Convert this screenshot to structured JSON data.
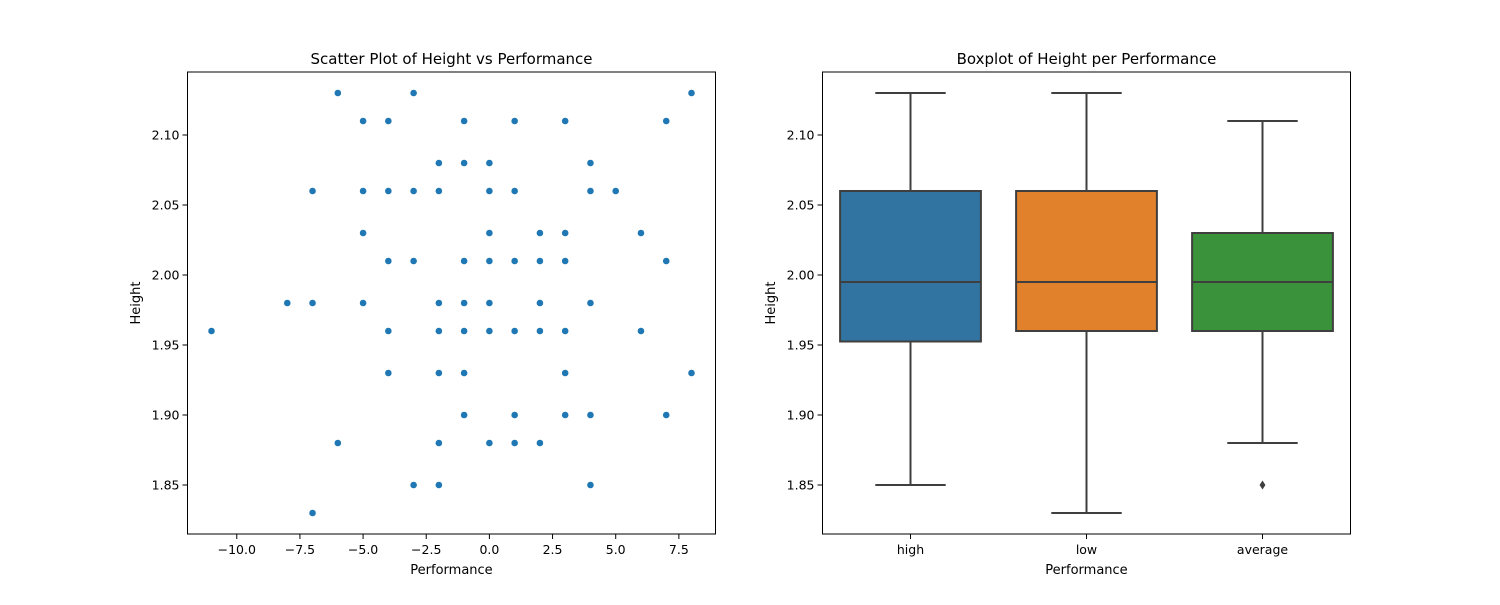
{
  "chart_data": [
    {
      "type": "scatter",
      "title": "Scatter Plot of Height vs Performance",
      "xlabel": "Performance",
      "ylabel": "Height",
      "xlim": [
        -11.95,
        8.95
      ],
      "ylim": [
        1.815,
        2.145
      ],
      "xticks": [
        -10.0,
        -7.5,
        -5.0,
        -2.5,
        0.0,
        2.5,
        5.0,
        7.5
      ],
      "xtick_labels": [
        "−10.0",
        "−7.5",
        "−5.0",
        "−2.5",
        "0.0",
        "2.5",
        "5.0",
        "7.5"
      ],
      "yticks": [
        1.85,
        1.9,
        1.95,
        2.0,
        2.05,
        2.1
      ],
      "ytick_labels": [
        "1.85",
        "1.90",
        "1.95",
        "2.00",
        "2.05",
        "2.10"
      ],
      "grid": false,
      "color": "#1f77b4",
      "points": [
        [
          -6,
          2.13
        ],
        [
          -3,
          2.13
        ],
        [
          8,
          2.13
        ],
        [
          -5,
          2.11
        ],
        [
          -4,
          2.11
        ],
        [
          -1,
          2.11
        ],
        [
          1,
          2.11
        ],
        [
          3,
          2.11
        ],
        [
          7,
          2.11
        ],
        [
          -2,
          2.08
        ],
        [
          -1,
          2.08
        ],
        [
          0,
          2.08
        ],
        [
          4,
          2.08
        ],
        [
          -7,
          2.06
        ],
        [
          -5,
          2.06
        ],
        [
          -4,
          2.06
        ],
        [
          -3,
          2.06
        ],
        [
          -2,
          2.06
        ],
        [
          0,
          2.06
        ],
        [
          1,
          2.06
        ],
        [
          4,
          2.06
        ],
        [
          5,
          2.06
        ],
        [
          -5,
          2.03
        ],
        [
          0,
          2.03
        ],
        [
          2,
          2.03
        ],
        [
          3,
          2.03
        ],
        [
          6,
          2.03
        ],
        [
          -4,
          2.01
        ],
        [
          -3,
          2.01
        ],
        [
          -1,
          2.01
        ],
        [
          0,
          2.01
        ],
        [
          1,
          2.01
        ],
        [
          2,
          2.01
        ],
        [
          3,
          2.01
        ],
        [
          7,
          2.01
        ],
        [
          -8,
          1.98
        ],
        [
          -7,
          1.98
        ],
        [
          -5,
          1.98
        ],
        [
          -2,
          1.98
        ],
        [
          -1,
          1.98
        ],
        [
          0,
          1.98
        ],
        [
          2,
          1.98
        ],
        [
          4,
          1.98
        ],
        [
          -11,
          1.96
        ],
        [
          -4,
          1.96
        ],
        [
          -2,
          1.96
        ],
        [
          -1,
          1.96
        ],
        [
          0,
          1.96
        ],
        [
          1,
          1.96
        ],
        [
          2,
          1.96
        ],
        [
          3,
          1.96
        ],
        [
          6,
          1.96
        ],
        [
          -4,
          1.93
        ],
        [
          -2,
          1.93
        ],
        [
          -1,
          1.93
        ],
        [
          3,
          1.93
        ],
        [
          8,
          1.93
        ],
        [
          -1,
          1.9
        ],
        [
          1,
          1.9
        ],
        [
          3,
          1.9
        ],
        [
          4,
          1.9
        ],
        [
          7,
          1.9
        ],
        [
          -6,
          1.88
        ],
        [
          -2,
          1.88
        ],
        [
          0,
          1.88
        ],
        [
          1,
          1.88
        ],
        [
          2,
          1.88
        ],
        [
          -3,
          1.85
        ],
        [
          -2,
          1.85
        ],
        [
          4,
          1.85
        ],
        [
          -7,
          1.83
        ]
      ]
    },
    {
      "type": "box",
      "title": "Boxplot of Height per Performance",
      "xlabel": "Performance",
      "ylabel": "Height",
      "ylim": [
        1.815,
        2.145
      ],
      "yticks": [
        1.85,
        1.9,
        1.95,
        2.0,
        2.05,
        2.1
      ],
      "ytick_labels": [
        "1.85",
        "1.90",
        "1.95",
        "2.00",
        "2.05",
        "2.10"
      ],
      "grid": false,
      "categories": [
        "high",
        "low",
        "average"
      ],
      "boxes": [
        {
          "category": "high",
          "whisker_low": 1.85,
          "q1": 1.9525,
          "median": 1.995,
          "q3": 2.06,
          "whisker_high": 2.13,
          "outliers": [],
          "color": "#3274a1"
        },
        {
          "category": "low",
          "whisker_low": 1.83,
          "q1": 1.96,
          "median": 1.995,
          "q3": 2.06,
          "whisker_high": 2.13,
          "outliers": [],
          "color": "#e1812c"
        },
        {
          "category": "average",
          "whisker_low": 1.88,
          "q1": 1.96,
          "median": 1.995,
          "q3": 2.03,
          "whisker_high": 2.11,
          "outliers": [
            1.85
          ],
          "color": "#3a923a"
        }
      ]
    }
  ]
}
